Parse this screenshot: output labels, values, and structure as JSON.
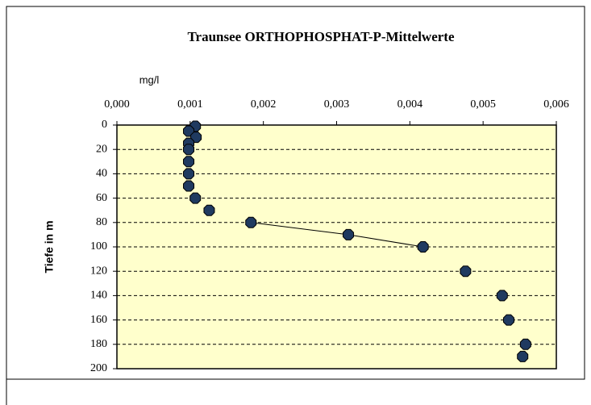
{
  "chart_data": {
    "type": "scatter",
    "title": "Traunsee ORTHOPHOSPHAT-P-Mittelwerte",
    "x_label": "mg/l",
    "y_label": "Tiefe in m",
    "xlim": [
      0,
      0.006
    ],
    "xticks": [
      {
        "value": 0,
        "label": "0,000"
      },
      {
        "value": 0.001,
        "label": "0,001"
      },
      {
        "value": 0.002,
        "label": "0,002"
      },
      {
        "value": 0.003,
        "label": "0,003"
      },
      {
        "value": 0.004,
        "label": "0,004"
      },
      {
        "value": 0.005,
        "label": "0,005"
      },
      {
        "value": 0.006,
        "label": "0,006"
      }
    ],
    "ylim": [
      0,
      200
    ],
    "y_inverted": true,
    "yticks": [
      0,
      20,
      40,
      60,
      80,
      100,
      120,
      140,
      160,
      180,
      200
    ],
    "grid": true,
    "plot_background": "#ffffcc",
    "series": [
      {
        "color": "#1f3a60",
        "line": false,
        "x": [
          0.00107,
          0.00098,
          0.00108,
          0.00098,
          0.00098,
          0.00098,
          0.00098,
          0.00098,
          0.00107,
          0.00126,
          0.00476,
          0.00526,
          0.00535,
          0.00558,
          0.00554
        ],
        "values": [
          1,
          5,
          10,
          15,
          20,
          30,
          40,
          50,
          60,
          70,
          120,
          140,
          160,
          180,
          190
        ]
      },
      {
        "color": "#1f3a60",
        "line": true,
        "x": [
          0.00183,
          0.00316,
          0.00418
        ],
        "values": [
          80,
          90,
          100
        ]
      }
    ]
  }
}
